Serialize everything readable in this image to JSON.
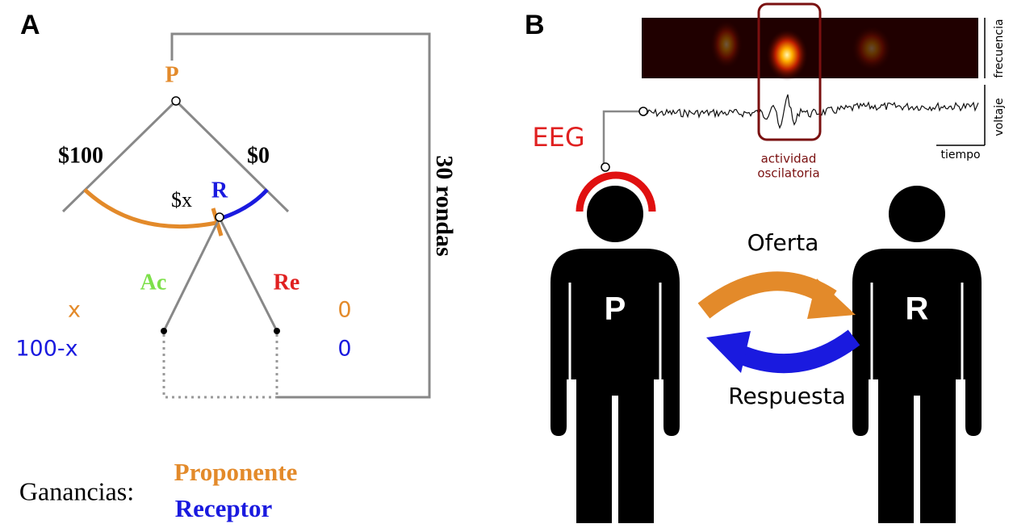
{
  "panel_a": {
    "label": "A",
    "proposer": "P",
    "left_offer": "$100",
    "right_offer": "$0",
    "offer": "$x",
    "responder": "R",
    "accept": "Ac",
    "reject": "Re",
    "accept_payoffs": [
      "x",
      "100-x"
    ],
    "reject_payoffs": [
      "0",
      "0"
    ],
    "rounds": "30 rondas",
    "legend": {
      "title": "Ganancias:",
      "proposer": "Proponente",
      "receiver": "Receptor"
    }
  },
  "panel_b": {
    "label": "B",
    "frequency_axis": "frecuencia",
    "voltage_axis": "voltaje",
    "time_axis": "tiempo",
    "eeg": "EEG",
    "activity": [
      "actividad",
      "oscilatoria"
    ],
    "offer": "Oferta",
    "response": "Respuesta",
    "proposer": "P",
    "responder": "R"
  }
}
